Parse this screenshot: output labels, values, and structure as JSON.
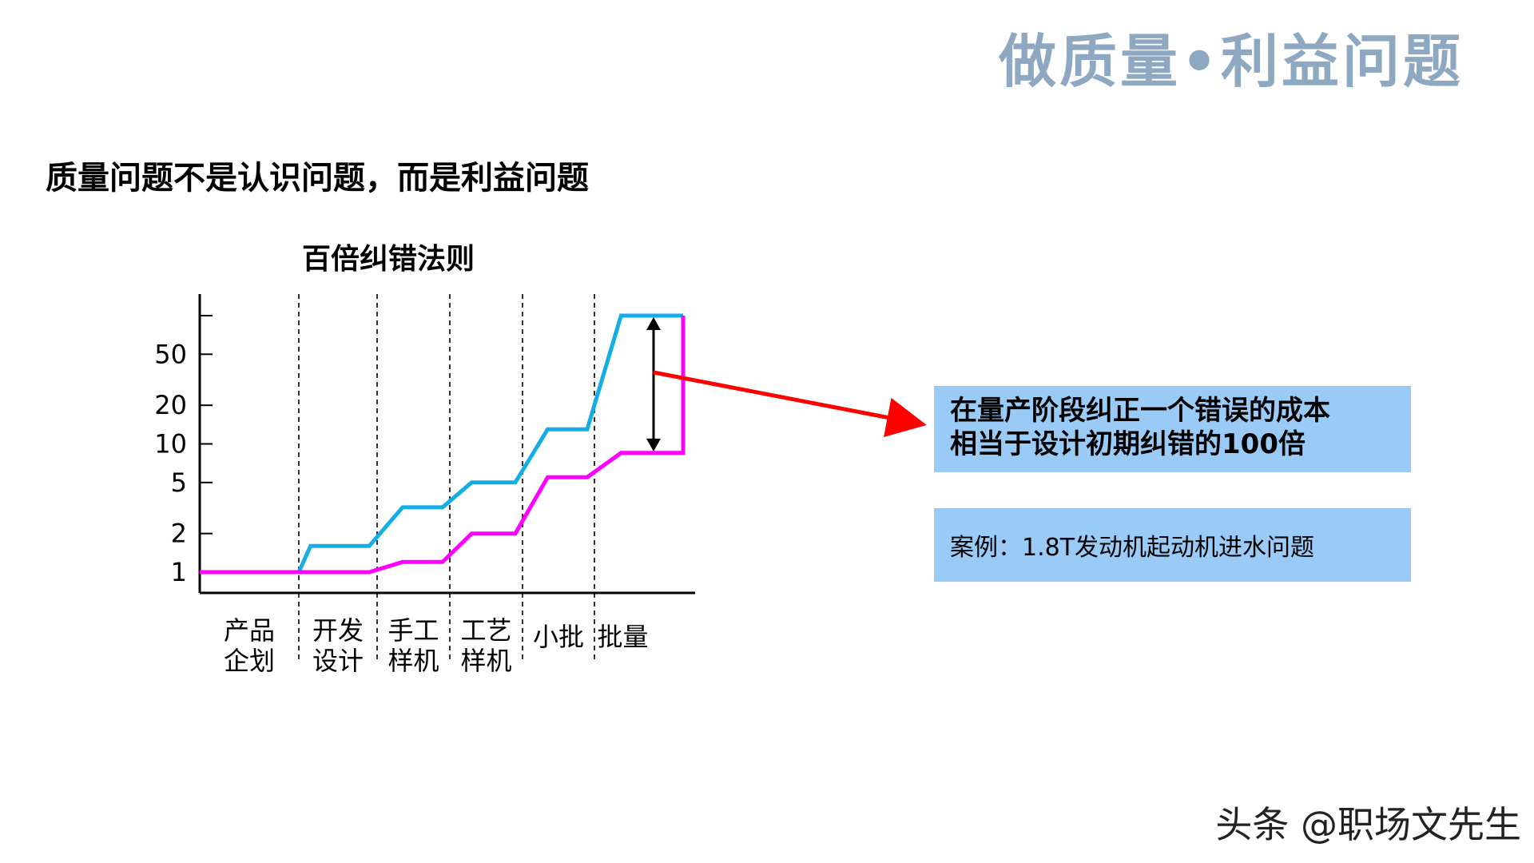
{
  "header": {
    "title": "做质量•利益问题"
  },
  "slide": {
    "heading": "质量问题不是认识问题，而是利益问题"
  },
  "chart_data": {
    "type": "line",
    "title": "百倍纠错法则",
    "xlabel": "",
    "ylabel": "",
    "y_scale": "log",
    "y_ticks": [
      1,
      2,
      5,
      10,
      20,
      50,
      100
    ],
    "y_tick_labels": [
      "1",
      "2",
      "5",
      "10",
      "20",
      "50",
      ""
    ],
    "stages": [
      "产品企划",
      "开发设计",
      "手工样机",
      "工艺样机",
      "小批",
      "批量"
    ],
    "stage_label_lines": [
      [
        "产品",
        "企划"
      ],
      [
        "开发",
        "设计"
      ],
      [
        "手工",
        "样机"
      ],
      [
        "工艺",
        "样机"
      ],
      [
        "小批"
      ],
      [
        "批量"
      ]
    ],
    "series": [
      {
        "color": "#14aee6",
        "points": [
          [
            0,
            1
          ],
          [
            1,
            1
          ],
          [
            1.15,
            1.6
          ],
          [
            1.9,
            1.6
          ],
          [
            2.35,
            3.2
          ],
          [
            2.9,
            3.2
          ],
          [
            3.3,
            5
          ],
          [
            3.9,
            5
          ],
          [
            4.35,
            13
          ],
          [
            4.9,
            13
          ],
          [
            5.3,
            100
          ],
          [
            6.0,
            100
          ]
        ]
      },
      {
        "color": "#ff00ff",
        "points": [
          [
            0,
            1
          ],
          [
            1,
            1
          ],
          [
            1.9,
            1
          ],
          [
            2.35,
            1.2
          ],
          [
            2.9,
            1.2
          ],
          [
            3.3,
            2
          ],
          [
            3.9,
            2
          ],
          [
            4.35,
            5.5
          ],
          [
            4.9,
            5.5
          ],
          [
            5.3,
            8.5
          ],
          [
            6.0,
            8.5
          ],
          [
            6.0,
            100
          ]
        ]
      }
    ],
    "annotation": {
      "double_arrow_from": 100,
      "double_arrow_to": 8.5,
      "pointer_color": "#ff0000"
    }
  },
  "callout": {
    "line1": "在量产阶段纠正一个错误的成本",
    "line2": "相当于设计初期纠错的100倍"
  },
  "case": {
    "text": "案例：1.8T发动机起动机进水问题"
  },
  "watermark": {
    "text": "头条 @职场文先生"
  }
}
